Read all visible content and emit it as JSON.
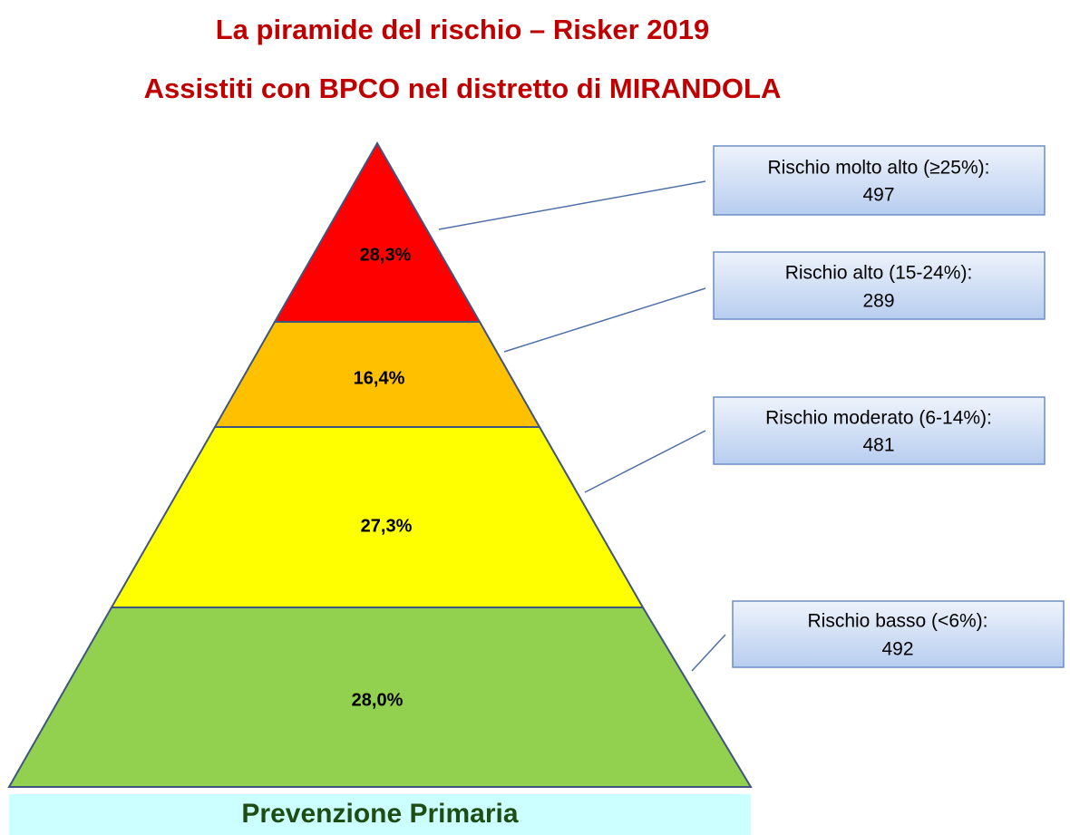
{
  "title": "La piramide del rischio – Risker 2019",
  "subtitle": "Assistiti con BPCO nel distretto di MIRANDOLA",
  "levels": [
    {
      "percent": "28,3%",
      "label": "Rischio molto alto (≥25%):",
      "count": 497
    },
    {
      "percent": "16,4%",
      "label": "Rischio alto (15-24%):",
      "count": 289
    },
    {
      "percent": "27,3%",
      "label": "Rischio moderato (6-14%):",
      "count": 481
    },
    {
      "percent": "28,0%",
      "label": "Rischio basso (<6%):",
      "count": 492
    }
  ],
  "footer": "Prevenzione Primaria"
}
